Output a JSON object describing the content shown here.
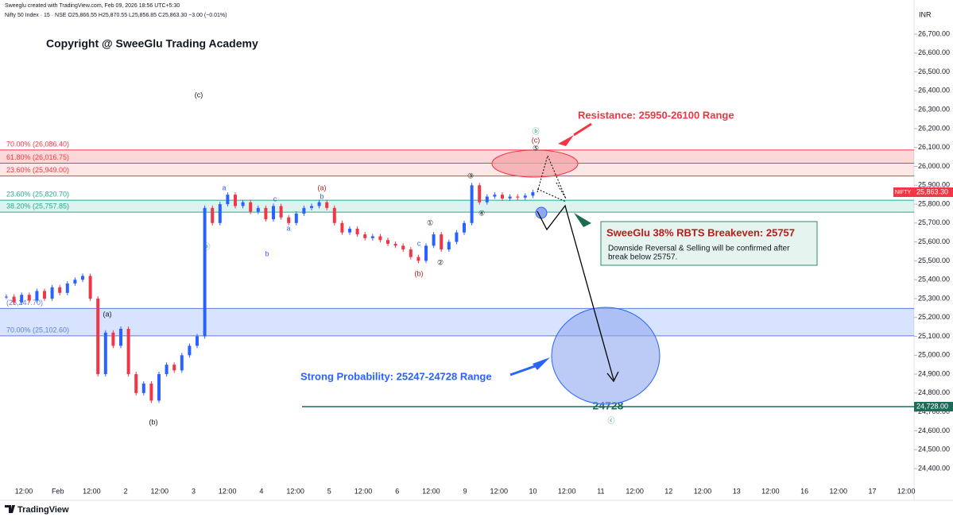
{
  "chart_data": {
    "type": "candlestick",
    "header": "Sweeglu created with TradingView.com, Feb 09, 2026 18:56 UTC+5:30",
    "symbol_line": "Nifty 50 Index · 15 · NSE   O25,866.55  H25,870.55  L25,856.85  C25,863.30  −3.00 (−0.01%)",
    "currency": "INR",
    "title": "Copyright @ SweeGlu Trading Academy",
    "brand": "TradingView",
    "series": [
      {
        "name": "NIFTY",
        "up_color": "#2962ff",
        "down_color": "#f23645",
        "values": [
          25310,
          25280,
          25320,
          25290,
          25340,
          25300,
          25360,
          25330,
          25380,
          25400,
          25420,
          25300,
          24900,
          25120,
          25050,
          25140,
          24900,
          24800,
          24850,
          24760,
          24900,
          24950,
          24920,
          25000,
          25050,
          25100,
          25780,
          25700,
          25800,
          25850,
          25790,
          25810,
          25760,
          25780,
          25720,
          25790,
          25730,
          25700,
          25750,
          25780,
          25790,
          25810,
          25780,
          25700,
          25650,
          25670,
          25640,
          25620,
          25630,
          25610,
          25590,
          25580,
          25560,
          25520,
          25500,
          25580,
          25640,
          25560,
          25600,
          25650,
          25700,
          25900,
          25810,
          25840,
          25850,
          25830,
          25840,
          25835,
          25845,
          25863.3
        ]
      }
    ],
    "last_price": {
      "value": 25863.3,
      "label": "25,863.30",
      "name": "NIFTY"
    },
    "ylim": [
      24400,
      26700
    ],
    "yticks": [
      {
        "value": 26700,
        "label": "26,700.00"
      },
      {
        "value": 26600,
        "label": "26,600.00"
      },
      {
        "value": 26500,
        "label": "26,500.00"
      },
      {
        "value": 26400,
        "label": "26,400.00"
      },
      {
        "value": 26300,
        "label": "26,300.00"
      },
      {
        "value": 26200,
        "label": "26,200.00"
      },
      {
        "value": 26100,
        "label": "26,100.00"
      },
      {
        "value": 26000,
        "label": "26,000.00"
      },
      {
        "value": 25900,
        "label": "25,900.00"
      },
      {
        "value": 25800,
        "label": "25,800.00"
      },
      {
        "value": 25700,
        "label": "25,700.00"
      },
      {
        "value": 25600,
        "label": "25,600.00"
      },
      {
        "value": 25500,
        "label": "25,500.00"
      },
      {
        "value": 25400,
        "label": "25,400.00"
      },
      {
        "value": 25300,
        "label": "25,300.00"
      },
      {
        "value": 25200,
        "label": "25,200.00"
      },
      {
        "value": 25100,
        "label": "25,100.00"
      },
      {
        "value": 25000,
        "label": "25,000.00"
      },
      {
        "value": 24900,
        "label": "24,900.00"
      },
      {
        "value": 24800,
        "label": "24,800.00"
      },
      {
        "value": 24700,
        "label": "24,700.00"
      },
      {
        "value": 24600,
        "label": "24,600.00"
      },
      {
        "value": 24500,
        "label": "24,500.00"
      },
      {
        "value": 24400,
        "label": "24,400.00"
      }
    ],
    "time_labels": [
      "12:00",
      "Feb",
      "12:00",
      "2",
      "12:00",
      "3",
      "12:00",
      "4",
      "12:00",
      "5",
      "12:00",
      "6",
      "12:00",
      "9",
      "12:00",
      "10",
      "12:00",
      "11",
      "12:00",
      "12",
      "12:00",
      "13",
      "12:00",
      "16",
      "12:00",
      "17",
      "12:00"
    ],
    "levels": [
      {
        "value": 26086.4,
        "label": "70.00% (26,086.40)",
        "color": "#f23645"
      },
      {
        "value": 26016.75,
        "label": "61.80% (26,016.75)",
        "color": "#f23645"
      },
      {
        "value": 25949,
        "label": "23.60% (25,949.00)",
        "color": "#f23645"
      },
      {
        "value": 25820.7,
        "label": "23.60% (25,820.70)",
        "color": "#22ab94"
      },
      {
        "value": 25757.85,
        "label": "38.20% (25,757.85)",
        "color": "#22ab94"
      },
      {
        "value": 25247.7,
        "label": "(25,247.70)",
        "color": "#5b7fd6"
      },
      {
        "value": 25102.6,
        "label": "70.00% (25,102.60)",
        "color": "#5b7fd6"
      }
    ],
    "target": {
      "value": 24728,
      "label": "24,728.00",
      "text": "24728"
    },
    "annotations": {
      "resistance": "Resistance: 25950-26100 Range",
      "breakeven": "SweeGlu 38% RBTS Breakeven: 25757",
      "breakeven_note_1": "Downside Reversal & Selling will be confirmed after",
      "breakeven_note_2": "break below 25757.",
      "probability": "Strong Probability: 25247-24728 Range"
    },
    "wave_labels": [
      "(c)",
      "ⓐ",
      "a",
      "b",
      "c",
      "a",
      "(a)",
      "b",
      "c",
      "(b)",
      "①",
      "②",
      "③",
      "④",
      "⑤",
      "ⓑ",
      "(c)",
      "ⓒ",
      "(a)",
      "(b)"
    ]
  }
}
